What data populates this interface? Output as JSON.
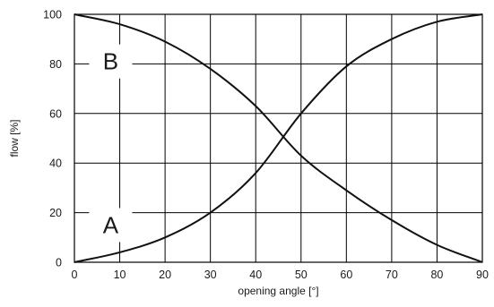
{
  "chart_data": {
    "type": "line",
    "xlabel": "opening angle [°]",
    "ylabel": "flow [%]",
    "xlim": [
      0,
      90
    ],
    "ylim": [
      0,
      100
    ],
    "x_ticks": [
      0,
      10,
      20,
      30,
      40,
      50,
      60,
      70,
      80,
      90
    ],
    "y_ticks": [
      0,
      20,
      40,
      60,
      80,
      100
    ],
    "grid": true,
    "x": [
      0,
      10,
      20,
      30,
      40,
      50,
      60,
      70,
      80,
      90
    ],
    "series": [
      {
        "name": "A",
        "values": [
          0,
          4,
          10,
          20,
          36,
          60,
          79,
          90,
          97,
          100
        ]
      },
      {
        "name": "B",
        "values": [
          100,
          96,
          89,
          78,
          63,
          43,
          29,
          17,
          7,
          0
        ]
      }
    ]
  }
}
